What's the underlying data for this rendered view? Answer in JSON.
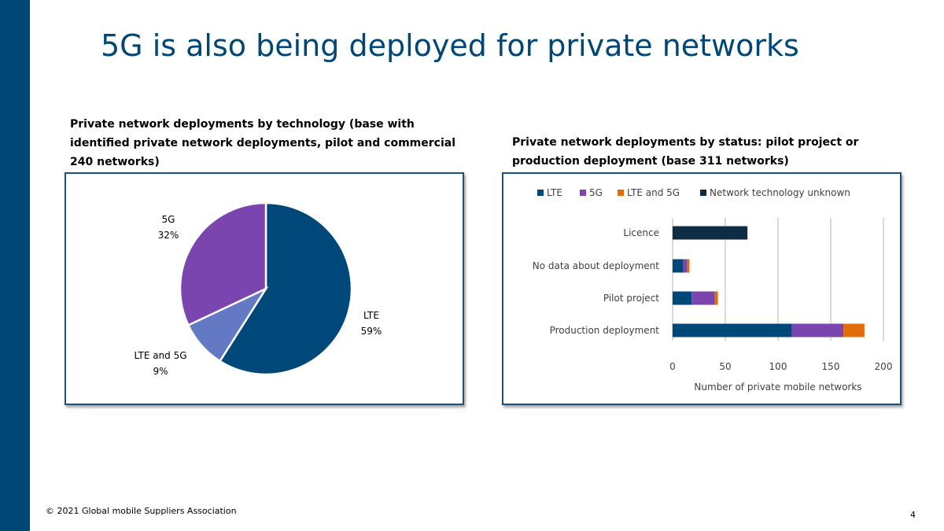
{
  "slide": {
    "title": "5G is also being deployed for private networks",
    "footer": "© 2021 Global mobile Suppliers Association",
    "page_number": "4"
  },
  "colors": {
    "brand_blue": "#004778",
    "lte": "#00487a",
    "fiveg": "#7b45b0",
    "lte_5g_pie": "#6479c4",
    "lte_5g_bar": "#e36c0a",
    "unknown": "#0e2d44"
  },
  "chart_data": [
    {
      "type": "pie",
      "title": "Private network deployments by technology (base with identified private network deployments, pilot and commercial 240 networks)",
      "slices": [
        {
          "label": "LTE",
          "percent_label": "59%",
          "value": 59,
          "color": "#00487a"
        },
        {
          "label": "LTE and 5G",
          "percent_label": "9%",
          "value": 9,
          "color": "#6479c4"
        },
        {
          "label": "5G",
          "percent_label": "32%",
          "value": 32,
          "color": "#7b45b0"
        }
      ]
    },
    {
      "type": "bar",
      "orientation": "horizontal",
      "stacked": true,
      "title": "Private network deployments by status: pilot project or production deployment (base 311 networks)",
      "categories": [
        "Licence",
        "No data about deployment",
        "Pilot project",
        "Production deployment"
      ],
      "series": [
        {
          "name": "LTE",
          "color": "#00487a",
          "values": [
            0,
            10,
            18,
            113
          ]
        },
        {
          "name": "5G",
          "color": "#7b45b0",
          "values": [
            0,
            4,
            22,
            49
          ]
        },
        {
          "name": "LTE and 5G",
          "color": "#e36c0a",
          "values": [
            0,
            2,
            3,
            20
          ]
        },
        {
          "name": "Network technology unknown",
          "color": "#0e2d44",
          "values": [
            71,
            0,
            0,
            0
          ]
        }
      ],
      "xlabel": "Number of private mobile networks",
      "xlim": [
        0,
        200
      ],
      "xticks": [
        0,
        50,
        100,
        150,
        200
      ],
      "grid": true,
      "legend_position": "top"
    }
  ]
}
